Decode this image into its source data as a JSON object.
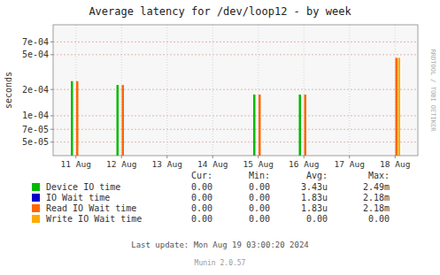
{
  "chart_data": {
    "type": "bar",
    "title": "Average latency for /dev/loop12 - by week",
    "y_label": "seconds",
    "categories": [
      "11 Aug",
      "12 Aug",
      "13 Aug",
      "14 Aug",
      "15 Aug",
      "16 Aug",
      "17 Aug",
      "18 Aug"
    ],
    "series": [
      {
        "name": "Device IO time",
        "color": "#00bb00",
        "values": [
          0.000249,
          0.000225,
          null,
          null,
          0.000175,
          0.000175,
          null,
          null
        ]
      },
      {
        "name": "IO Wait time",
        "color": "#0000cc",
        "values": [
          null,
          null,
          null,
          null,
          null,
          null,
          null,
          null
        ]
      },
      {
        "name": "Read IO Wait time",
        "color": "#ff6600",
        "values": [
          0.000249,
          0.000225,
          null,
          null,
          0.000175,
          0.000175,
          null,
          0.00046
        ]
      },
      {
        "name": "Write IO Wait time",
        "color": "#ffaa00",
        "values": [
          null,
          null,
          null,
          null,
          null,
          null,
          null,
          0.00046
        ]
      }
    ],
    "log": "y",
    "ylim": [
      3.5e-05,
      0.0011
    ],
    "yticks": [
      {
        "value": 5e-05,
        "label": "5e-05"
      },
      {
        "value": 7e-05,
        "label": "7e-05"
      },
      {
        "value": 0.0001,
        "label": "1e-04"
      },
      {
        "value": 0.0002,
        "label": "2e-04"
      },
      {
        "value": 0.0005,
        "label": "5e-04"
      },
      {
        "value": 0.0007,
        "label": "7e-04"
      }
    ],
    "grid": true,
    "legend_table": {
      "headers": [
        "Cur:",
        "Min:",
        "Avg:",
        "Max:"
      ],
      "rows": [
        [
          "0.00",
          "0.00",
          "3.43u",
          "2.49m"
        ],
        [
          "0.00",
          "0.00",
          "1.83u",
          "2.18m"
        ],
        [
          "0.00",
          "0.00",
          "1.83u",
          "2.18m"
        ],
        [
          "0.00",
          "0.00",
          "0.00",
          "0.00"
        ]
      ]
    },
    "annotations": [
      "Last update: Mon Aug 19 03:00:20 2024",
      "Munin 2.0.57",
      "RRDTOOL / TOBI OETIKER"
    ]
  }
}
